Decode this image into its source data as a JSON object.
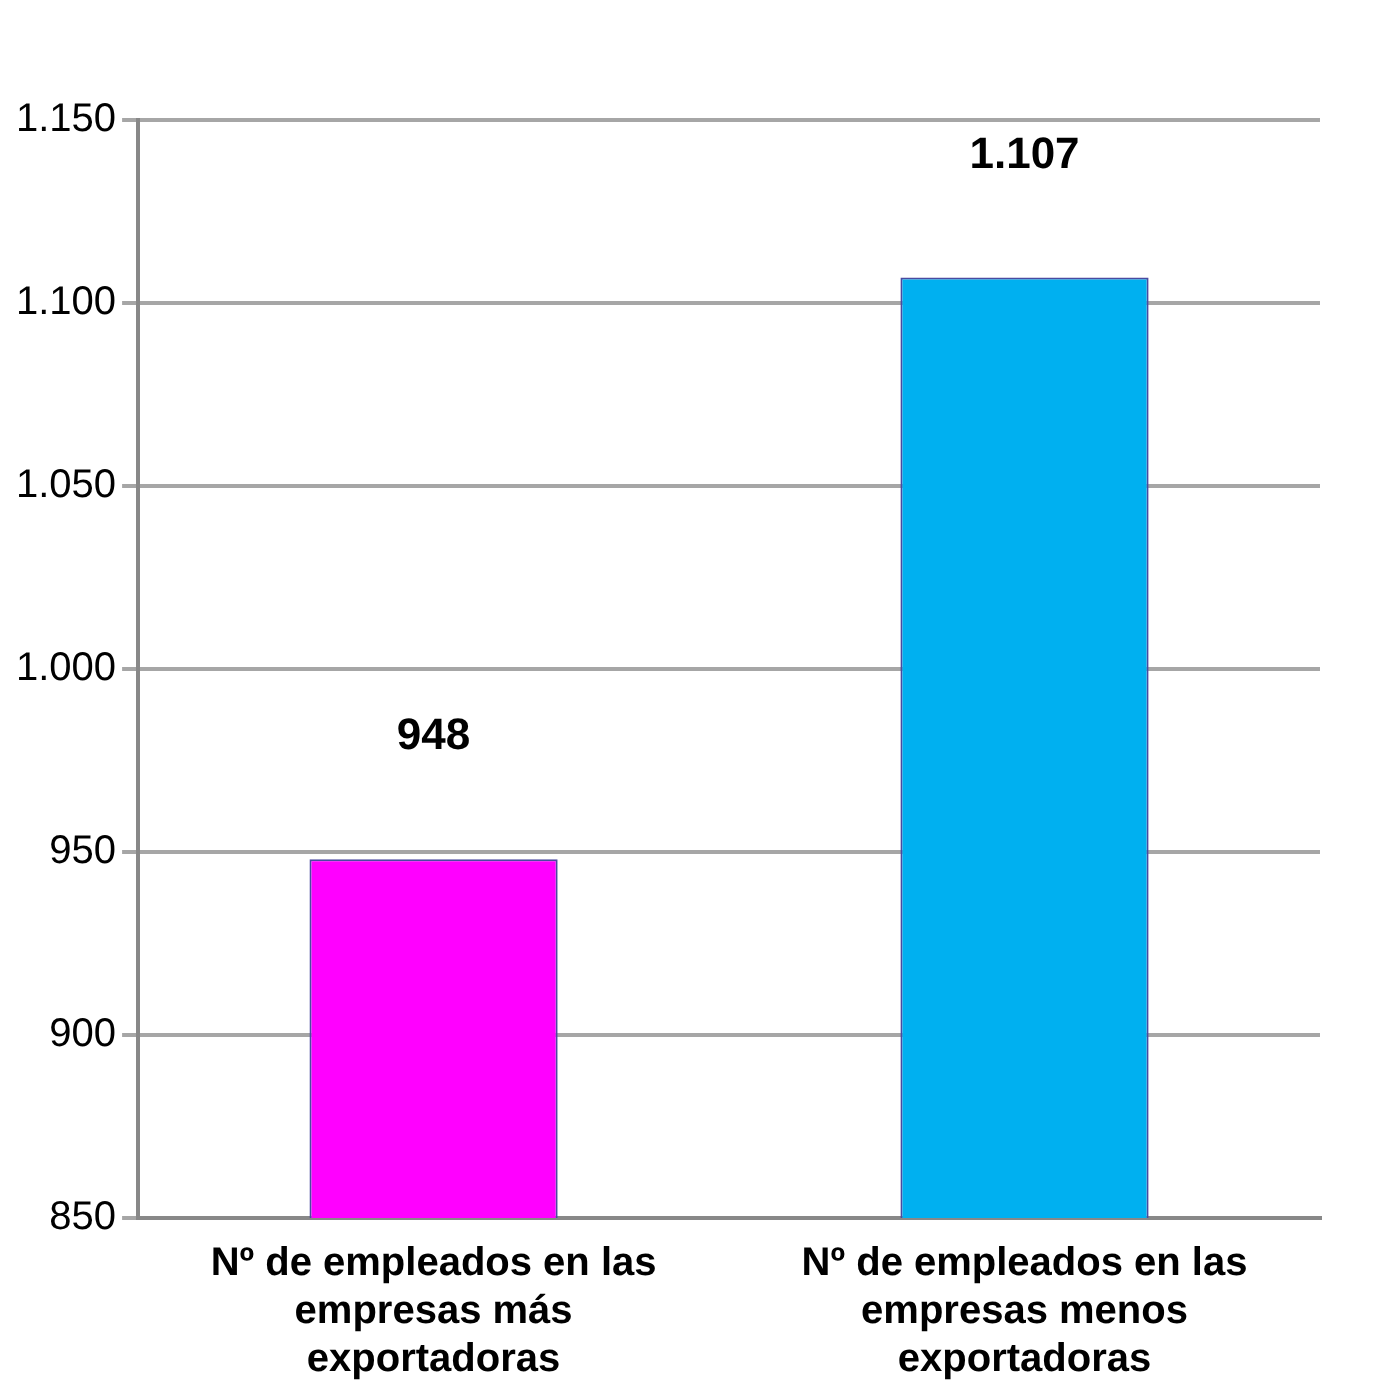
{
  "chart_data": {
    "type": "bar",
    "categories": [
      "Nº de empleados en las empresas más exportadoras",
      "Nº de empleados en las empresas menos exportadoras"
    ],
    "values": [
      948,
      1107
    ],
    "colors": [
      "#ff00ff",
      "#00b0f0"
    ],
    "value_labels": [
      "948",
      "1.107"
    ],
    "ylim": [
      850,
      1150
    ],
    "yticks": [
      {
        "value": 850,
        "label": "850"
      },
      {
        "value": 900,
        "label": "900"
      },
      {
        "value": 950,
        "label": "950"
      },
      {
        "value": 1000,
        "label": "1.000"
      },
      {
        "value": 1050,
        "label": "1.050"
      },
      {
        "value": 1100,
        "label": "1.100"
      },
      {
        "value": 1150,
        "label": "1.150"
      }
    ],
    "grid": "y",
    "legend": false
  }
}
